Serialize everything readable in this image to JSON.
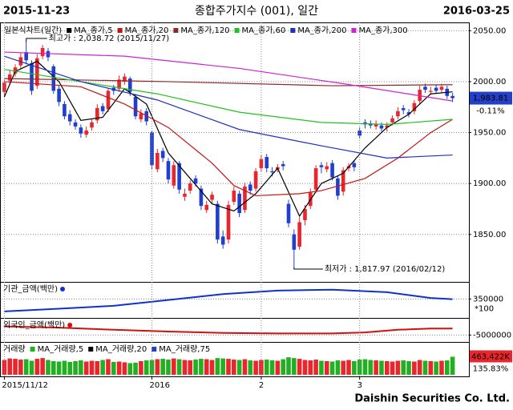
{
  "header": {
    "start_date": "2015-11-23",
    "title": "종합주가지수 (001), 일간",
    "end_date": "2016-03-25"
  },
  "x_axis": {
    "xlim": [
      -0.5,
      82.5
    ],
    "xticks": [
      {
        "value": 0,
        "label": "2015/11/12"
      },
      {
        "value": 27,
        "label": "2016"
      },
      {
        "value": 47,
        "label": "2"
      },
      {
        "value": 65,
        "label": "3"
      }
    ]
  },
  "footer": "Daishin Securities Co. Ltd.",
  "chart_data": [
    {
      "type": "candlestick",
      "legend_title": "일본식차트(일간)",
      "up_color": "#e8262b",
      "down_color": "#1f3fd0",
      "open": [
        1990,
        2001,
        2008,
        2016,
        2029,
        2018,
        1996,
        2025,
        2030,
        2015,
        1993,
        1978,
        1968,
        1960,
        1955,
        1948,
        1955,
        1962,
        1976,
        1973,
        1994,
        1993,
        2000,
        2003,
        1985,
        1963,
        1971,
        1950,
        1914,
        1932,
        1922,
        1898,
        1920,
        1887,
        1893,
        1905,
        1895,
        1874,
        1884,
        1880,
        1848,
        1845,
        1882,
        1890,
        1874,
        1899,
        1895,
        1915,
        1926,
        1912,
        1914,
        1919,
        1880,
        1850,
        1838,
        1864,
        1878,
        1894,
        1918,
        1914,
        1920,
        1905,
        1892,
        1915,
        1920,
        1952,
        1960,
        1959,
        1956,
        1957,
        1955,
        1960,
        1966,
        1974,
        1970,
        1971,
        1981,
        1995,
        1990,
        1994,
        1992,
        1993,
        1986
      ],
      "high": [
        2002,
        2011,
        2017,
        2028,
        2038.72,
        2021,
        2027,
        2036,
        2033,
        2017,
        1996,
        1981,
        1972,
        1963,
        1958,
        1956,
        1963,
        1978,
        1979,
        1993,
        1997,
        2006,
        2008,
        2005,
        1988,
        1973,
        1974,
        1952,
        1934,
        1935,
        1925,
        1922,
        1922,
        1895,
        1903,
        1908,
        1898,
        1883,
        1892,
        1883,
        1854,
        1883,
        1897,
        1893,
        1901,
        1902,
        1915,
        1928,
        1929,
        1916,
        1919,
        1922,
        1884,
        1855,
        1867,
        1879,
        1895,
        1918,
        1921,
        1921,
        1923,
        1908,
        1916,
        1920,
        1923,
        1955,
        1963,
        1962,
        1962,
        1960,
        1960,
        1967,
        1975,
        1977,
        1973,
        1982,
        1996,
        1998,
        1995,
        1997,
        1998,
        1996,
        1989
      ],
      "low": [
        1986,
        1998,
        2005,
        2013,
        2017,
        1987,
        1993,
        2022,
        2020,
        1988,
        1976,
        1963,
        1957,
        1953,
        1945,
        1945,
        1952,
        1959,
        1968,
        1970,
        1987,
        1990,
        1997,
        1986,
        1963,
        1960,
        1957,
        1914,
        1911,
        1921,
        1900,
        1895,
        1890,
        1883,
        1890,
        1897,
        1874,
        1871,
        1880,
        1841,
        1836,
        1841,
        1879,
        1867,
        1871,
        1889,
        1892,
        1912,
        1911,
        1907,
        1911,
        1913,
        1857,
        1817.97,
        1835,
        1859,
        1875,
        1891,
        1910,
        1911,
        1903,
        1884,
        1888,
        1912,
        1912,
        1944,
        1954,
        1954,
        1953,
        1951,
        1951,
        1957,
        1963,
        1968,
        1965,
        1968,
        1978,
        1989,
        1987,
        1988,
        1989,
        1983,
        1980
      ],
      "close": [
        1999,
        2007,
        2014,
        2024,
        2021,
        1991,
        2023,
        2033,
        2024,
        1991,
        1980,
        1966,
        1961,
        1956,
        1949,
        1952,
        1960,
        1974,
        1971,
        1991,
        1991,
        2002,
        2005,
        1990,
        1966,
        1969,
        1961,
        1918,
        1930,
        1925,
        1904,
        1918,
        1894,
        1890,
        1900,
        1900,
        1878,
        1879,
        1889,
        1845,
        1840,
        1879,
        1893,
        1871,
        1897,
        1893,
        1912,
        1924,
        1915,
        1911,
        1916,
        1917,
        1861,
        1835,
        1862,
        1875,
        1891,
        1915,
        1916,
        1917,
        1906,
        1888,
        1913,
        1917,
        1916,
        1947,
        1958,
        1957,
        1958,
        1954,
        1957,
        1964,
        1971,
        1972,
        1968,
        1979,
        1992,
        1992,
        1991,
        1991,
        1995,
        1986,
        1983.81
      ],
      "series": [
        {
          "name": "MA_종가,5",
          "color": "#000000",
          "x": [
            0,
            2,
            6,
            10,
            14,
            18,
            22,
            26,
            30,
            34,
            38,
            42,
            46,
            50,
            54,
            58,
            62,
            66,
            70,
            74,
            78,
            82
          ],
          "values": [
            1985,
            2010,
            2020,
            2000,
            1962,
            1965,
            1993,
            1978,
            1930,
            1905,
            1880,
            1873,
            1890,
            1915,
            1868,
            1900,
            1910,
            1935,
            1955,
            1968,
            1988,
            1990
          ]
        },
        {
          "name": "MA_종가,20",
          "color": "#c81414",
          "x": [
            0,
            14,
            22,
            30,
            38,
            42,
            46,
            54,
            58,
            66,
            72,
            78,
            82
          ],
          "values": [
            2000,
            1995,
            1978,
            1955,
            1920,
            1898,
            1888,
            1890,
            1893,
            1905,
            1925,
            1950,
            1963
          ]
        },
        {
          "name": "MA_종가,120",
          "color": "#8b2a2a",
          "x": [
            0,
            30,
            60,
            82
          ],
          "values": [
            2003,
            2000,
            1996,
            1997
          ]
        },
        {
          "name": "MA_종가,60",
          "color": "#22c022",
          "x": [
            0,
            14,
            28,
            43,
            58,
            70,
            82
          ],
          "values": [
            2012,
            2000,
            1988,
            1970,
            1960,
            1958,
            1963
          ]
        },
        {
          "name": "MA_종가,200",
          "color": "#1f2fc0",
          "x": [
            0,
            14,
            28,
            43,
            58,
            70,
            82
          ],
          "values": [
            2025,
            2000,
            1982,
            1953,
            1937,
            1925,
            1928
          ]
        },
        {
          "name": "MA_종가,300",
          "color": "#d020d0",
          "x": [
            0,
            22,
            43,
            62,
            75,
            82
          ],
          "values": [
            2029,
            2025,
            2013,
            1998,
            1987,
            1981
          ]
        }
      ],
      "high_label": "최고가 : 2,038.72 (2015/11/27)",
      "low_label": "최저가 : 1,817.97 (2016/02/12)",
      "current": {
        "value": 1983.81,
        "label": "1,983.81"
      },
      "change": {
        "value": -0.11,
        "label": "-0.11%"
      },
      "ylim": [
        1805,
        2055
      ],
      "yticks": [
        {
          "value": 1850,
          "label": "1850.00"
        },
        {
          "value": 1900,
          "label": "1900.00"
        },
        {
          "value": 1950,
          "label": "1950.00"
        },
        {
          "value": 2000,
          "label": "2000.00"
        },
        {
          "value": 2050,
          "label": "2050.00"
        }
      ],
      "grid": true
    },
    {
      "type": "line",
      "name": "기관_금액(백만)",
      "color": "#1030d0",
      "x": [
        0,
        10,
        20,
        30,
        40,
        50,
        60,
        70,
        78,
        82
      ],
      "values": [
        -290000,
        -150000,
        0,
        300000,
        600000,
        780000,
        830000,
        700000,
        400000,
        340000
      ],
      "ylim": [
        -500000,
        900000
      ],
      "yticks": [
        350000
      ],
      "unit_note": "*100",
      "grid": true
    },
    {
      "type": "line",
      "name": "외국인_금액(백만)",
      "color": "#d01010",
      "x": [
        0,
        10,
        20,
        30,
        40,
        50,
        60,
        66,
        72,
        78,
        82
      ],
      "values": [
        -100000,
        -800000,
        -2000000,
        -3000000,
        -3800000,
        -4100000,
        -4100000,
        -3500000,
        -2000000,
        -1300000,
        -1300000
      ],
      "ylim": [
        -8000000,
        2000000
      ],
      "yticks": [
        -5000000
      ],
      "grid": true
    },
    {
      "type": "bar",
      "legend": [
        {
          "name": "거래량",
          "color": "#e8262b"
        },
        {
          "name": "MA_거래량,5",
          "color": "#22b022"
        },
        {
          "name": "MA_거래량,20",
          "color": "#000000"
        },
        {
          "name": "MA_거래량,75",
          "color": "#1f3fd0"
        }
      ],
      "up_color": "#e8262b",
      "down_color": "#22b022",
      "values": [
        380000,
        420000,
        410000,
        390000,
        400000,
        360000,
        410000,
        430000,
        380000,
        350000,
        340000,
        360000,
        330000,
        350000,
        370000,
        340000,
        360000,
        350000,
        380000,
        400000,
        330000,
        340000,
        320000,
        300000,
        310000,
        350000,
        370000,
        380000,
        400000,
        410000,
        390000,
        420000,
        400000,
        380000,
        370000,
        390000,
        410000,
        400000,
        380000,
        430000,
        420000,
        410000,
        390000,
        380000,
        400000,
        370000,
        360000,
        380000,
        390000,
        370000,
        360000,
        400000,
        450000,
        430000,
        410000,
        380000,
        370000,
        390000,
        360000,
        350000,
        340000,
        370000,
        360000,
        380000,
        350000,
        390000,
        400000,
        380000,
        370000,
        360000,
        350000,
        340000,
        360000,
        370000,
        350000,
        340000,
        380000,
        360000,
        350000,
        340000,
        360000,
        370000,
        463422
      ],
      "current": {
        "value": 463422,
        "label": "463,422K"
      },
      "ratio": {
        "value": 135.83,
        "label": "135.83%"
      },
      "ylim": [
        0,
        700000
      ]
    }
  ]
}
